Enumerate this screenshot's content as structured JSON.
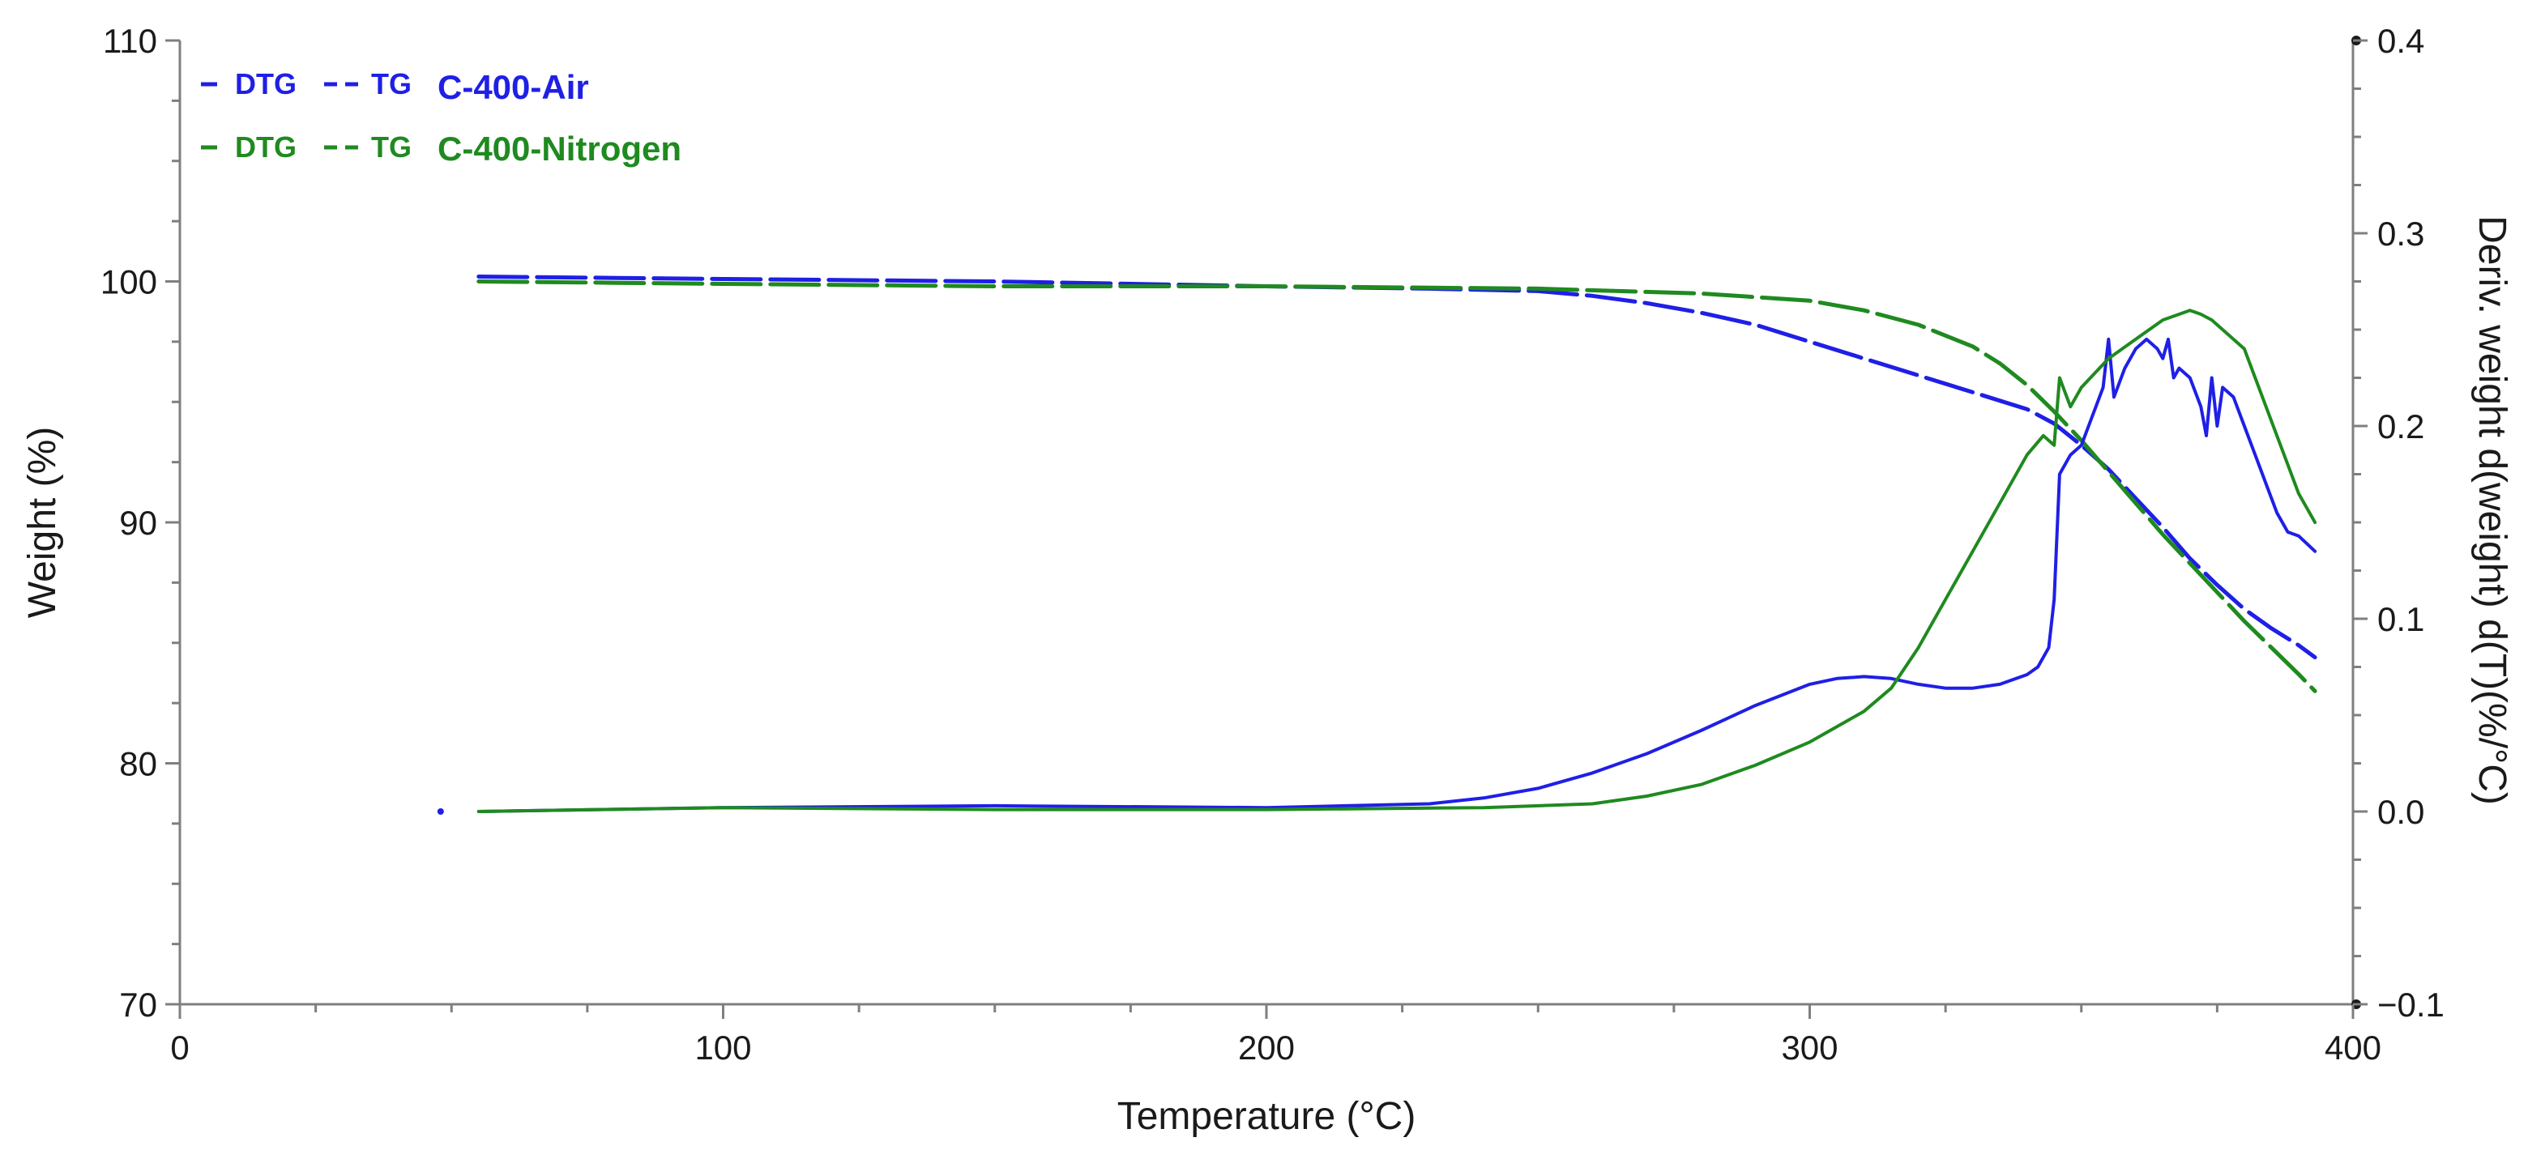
{
  "chart_data": {
    "type": "line",
    "title": "",
    "xlabel": "Temperature (°C)",
    "ylabel_left": "Weight (%)",
    "ylabel_right": "Deriv. weight d(weight) d(T)(%/°C)",
    "xlim": [
      0,
      400
    ],
    "ylim_left": [
      70,
      110
    ],
    "ylim_right": [
      -0.1,
      0.4
    ],
    "x_ticks": [
      0,
      100,
      200,
      300,
      400
    ],
    "y_left_ticks": [
      70,
      80,
      90,
      100,
      110
    ],
    "y_right_ticks": [
      -0.1,
      0.0,
      0.1,
      0.2,
      0.3,
      0.4
    ],
    "y_right_tick_labels": [
      "−0.1",
      "0.0",
      "0.1",
      "0.2",
      "0.3",
      "0.4"
    ],
    "grid": false,
    "legend_position": "top-left",
    "legend": [
      {
        "group": "C-400-Air",
        "color": "#1f1fe6",
        "dtg_label": "DTG",
        "tg_label": "TG"
      },
      {
        "group": "C-400-Nitrogen",
        "color": "#1f8a1f",
        "dtg_label": "DTG",
        "tg_label": "TG"
      }
    ],
    "series": [
      {
        "name": "C-400-Air TG",
        "axis": "left",
        "style": "dashed",
        "color": "#1f1fe6",
        "x": [
          55,
          100,
          150,
          200,
          230,
          250,
          260,
          270,
          280,
          290,
          300,
          310,
          320,
          330,
          340,
          345,
          350,
          355,
          360,
          365,
          370,
          375,
          380,
          385,
          390,
          393
        ],
        "y": [
          100.2,
          100.1,
          100.0,
          99.8,
          99.7,
          99.6,
          99.4,
          99.1,
          98.7,
          98.2,
          97.5,
          96.8,
          96.1,
          95.4,
          94.7,
          94.1,
          93.2,
          92.2,
          91.0,
          89.8,
          88.5,
          87.4,
          86.4,
          85.6,
          84.9,
          84.4
        ]
      },
      {
        "name": "C-400-Nitrogen TG",
        "axis": "left",
        "style": "dashed",
        "color": "#1f8a1f",
        "x": [
          55,
          100,
          150,
          200,
          250,
          280,
          300,
          310,
          320,
          330,
          335,
          340,
          345,
          350,
          355,
          360,
          365,
          370,
          375,
          380,
          385,
          390,
          393
        ],
        "y": [
          100.0,
          99.9,
          99.8,
          99.8,
          99.7,
          99.5,
          99.2,
          98.8,
          98.2,
          97.3,
          96.6,
          95.7,
          94.6,
          93.4,
          92.1,
          90.8,
          89.5,
          88.3,
          87.1,
          85.9,
          84.8,
          83.7,
          83.0
        ]
      },
      {
        "name": "C-400-Air DTG",
        "axis": "right",
        "style": "solid",
        "color": "#1f1fe6",
        "x": [
          55,
          100,
          150,
          200,
          230,
          240,
          250,
          260,
          270,
          280,
          290,
          300,
          305,
          310,
          315,
          320,
          325,
          330,
          335,
          340,
          342,
          344,
          345,
          346,
          348,
          350,
          352,
          354,
          355,
          356,
          358,
          360,
          362,
          364,
          365,
          366,
          367,
          368,
          370,
          372,
          373,
          374,
          375,
          376,
          378,
          380,
          382,
          384,
          386,
          388,
          390,
          393
        ],
        "y": [
          0.0,
          0.002,
          0.003,
          0.002,
          0.004,
          0.007,
          0.012,
          0.02,
          0.03,
          0.042,
          0.055,
          0.066,
          0.069,
          0.07,
          0.069,
          0.066,
          0.064,
          0.064,
          0.066,
          0.071,
          0.075,
          0.085,
          0.11,
          0.175,
          0.185,
          0.19,
          0.205,
          0.22,
          0.245,
          0.215,
          0.23,
          0.24,
          0.245,
          0.24,
          0.235,
          0.245,
          0.225,
          0.23,
          0.225,
          0.21,
          0.195,
          0.225,
          0.2,
          0.22,
          0.215,
          0.2,
          0.185,
          0.17,
          0.155,
          0.145,
          0.143,
          0.135
        ]
      },
      {
        "name": "C-400-Nitrogen DTG",
        "axis": "right",
        "style": "solid",
        "color": "#1f8a1f",
        "x": [
          55,
          100,
          150,
          200,
          240,
          260,
          270,
          280,
          290,
          300,
          310,
          315,
          320,
          325,
          330,
          335,
          340,
          343,
          345,
          346,
          348,
          350,
          355,
          360,
          365,
          368,
          370,
          372,
          374,
          376,
          378,
          380,
          382,
          384,
          386,
          388,
          390,
          393
        ],
        "y": [
          0.0,
          0.002,
          0.001,
          0.001,
          0.002,
          0.004,
          0.008,
          0.014,
          0.024,
          0.036,
          0.052,
          0.064,
          0.085,
          0.11,
          0.135,
          0.16,
          0.185,
          0.195,
          0.19,
          0.225,
          0.21,
          0.22,
          0.235,
          0.245,
          0.255,
          0.258,
          0.26,
          0.258,
          0.255,
          0.25,
          0.245,
          0.24,
          0.225,
          0.21,
          0.195,
          0.18,
          0.165,
          0.15
        ]
      }
    ],
    "annotations": [
      {
        "text": "",
        "x": 48,
        "y": 0.0,
        "axis": "right",
        "marker": "point",
        "series": "C-400-Air DTG"
      }
    ]
  }
}
